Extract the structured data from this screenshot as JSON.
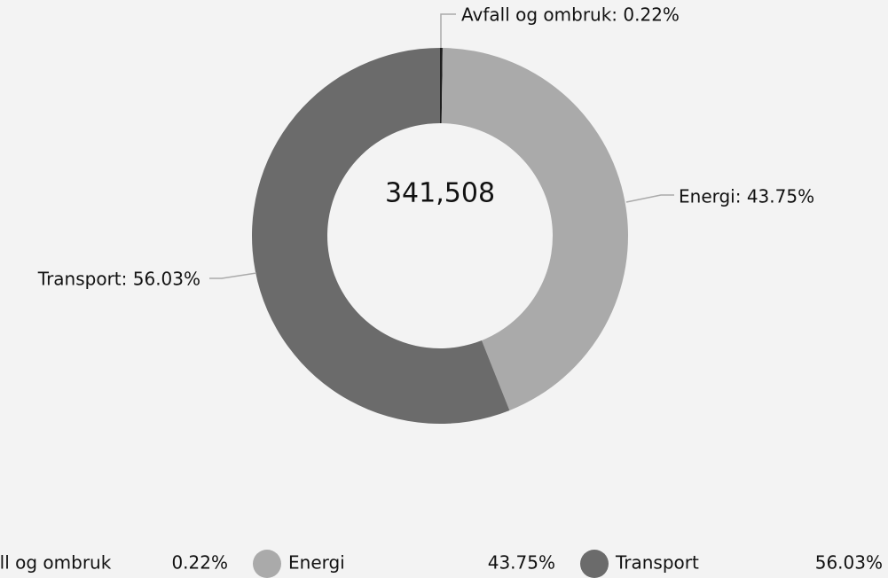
{
  "chart_data": {
    "type": "donut",
    "center_label": "341,508",
    "categories": [
      "Avfall og ombruk",
      "Energi",
      "Transport"
    ],
    "values": [
      0.22,
      43.75,
      56.03
    ],
    "value_labels": [
      "0.22%",
      "43.75%",
      "56.03%"
    ],
    "callout_labels": [
      "Avfall og ombruk: 0.22%",
      "Energi: 43.75%",
      "Transport: 56.03%"
    ],
    "colors": [
      "#1e1e1e",
      "#aaaaaa",
      "#6b6b6b"
    ]
  }
}
